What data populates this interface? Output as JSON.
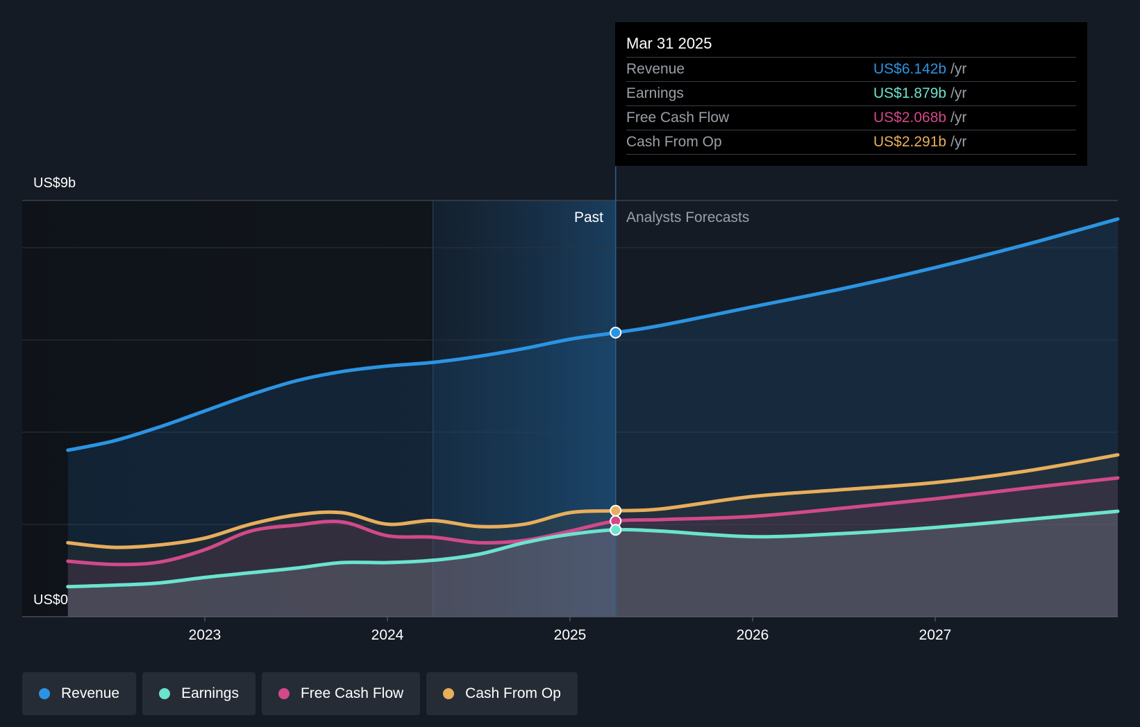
{
  "chart_data": {
    "type": "line",
    "y_axis": {
      "top_label": "US$9b",
      "bottom_label": "US$0",
      "ylim": [
        0,
        9
      ]
    },
    "x_axis": {
      "ticks": [
        "2023",
        "2024",
        "2025",
        "2026",
        "2027"
      ]
    },
    "x_range": [
      2022.0,
      2028.0
    ],
    "past_label": "Past",
    "forecast_label": "Analysts Forecasts",
    "split_x": 2025.25,
    "highlight_x_start": 2024.25,
    "series": [
      {
        "name": "Revenue",
        "color": "#2b94e2",
        "fill": true,
        "points": [
          [
            2022.25,
            3.6
          ],
          [
            2022.5,
            3.8
          ],
          [
            2022.75,
            4.1
          ],
          [
            2023.0,
            4.45
          ],
          [
            2023.25,
            4.8
          ],
          [
            2023.5,
            5.1
          ],
          [
            2023.75,
            5.3
          ],
          [
            2024.0,
            5.42
          ],
          [
            2024.25,
            5.5
          ],
          [
            2024.5,
            5.63
          ],
          [
            2024.75,
            5.8
          ],
          [
            2025.0,
            6.0
          ],
          [
            2025.25,
            6.142
          ],
          [
            2025.5,
            6.3
          ],
          [
            2026.0,
            6.7
          ],
          [
            2026.5,
            7.1
          ],
          [
            2027.0,
            7.55
          ],
          [
            2027.5,
            8.05
          ],
          [
            2028.0,
            8.6
          ]
        ]
      },
      {
        "name": "Cash From Op",
        "color": "#e8ae5c",
        "fill": false,
        "points": [
          [
            2022.25,
            1.6
          ],
          [
            2022.5,
            1.5
          ],
          [
            2022.75,
            1.55
          ],
          [
            2023.0,
            1.7
          ],
          [
            2023.25,
            2.0
          ],
          [
            2023.5,
            2.2
          ],
          [
            2023.75,
            2.25
          ],
          [
            2024.0,
            2.0
          ],
          [
            2024.25,
            2.08
          ],
          [
            2024.5,
            1.95
          ],
          [
            2024.75,
            2.0
          ],
          [
            2025.0,
            2.25
          ],
          [
            2025.25,
            2.291
          ],
          [
            2025.5,
            2.33
          ],
          [
            2026.0,
            2.6
          ],
          [
            2026.5,
            2.75
          ],
          [
            2027.0,
            2.9
          ],
          [
            2027.5,
            3.15
          ],
          [
            2028.0,
            3.5
          ]
        ]
      },
      {
        "name": "Free Cash Flow",
        "color": "#d2498a",
        "fill": false,
        "points": [
          [
            2022.25,
            1.2
          ],
          [
            2022.5,
            1.13
          ],
          [
            2022.75,
            1.18
          ],
          [
            2023.0,
            1.45
          ],
          [
            2023.25,
            1.85
          ],
          [
            2023.5,
            1.98
          ],
          [
            2023.75,
            2.05
          ],
          [
            2024.0,
            1.75
          ],
          [
            2024.25,
            1.72
          ],
          [
            2024.5,
            1.6
          ],
          [
            2024.75,
            1.65
          ],
          [
            2025.0,
            1.85
          ],
          [
            2025.25,
            2.068
          ],
          [
            2025.5,
            2.1
          ],
          [
            2026.0,
            2.17
          ],
          [
            2026.5,
            2.35
          ],
          [
            2027.0,
            2.55
          ],
          [
            2027.5,
            2.78
          ],
          [
            2028.0,
            3.0
          ]
        ]
      },
      {
        "name": "Earnings",
        "color": "#6be3cf",
        "fill": true,
        "points": [
          [
            2022.25,
            0.65
          ],
          [
            2022.5,
            0.68
          ],
          [
            2022.75,
            0.73
          ],
          [
            2023.0,
            0.85
          ],
          [
            2023.25,
            0.95
          ],
          [
            2023.5,
            1.05
          ],
          [
            2023.75,
            1.17
          ],
          [
            2024.0,
            1.17
          ],
          [
            2024.25,
            1.22
          ],
          [
            2024.5,
            1.35
          ],
          [
            2024.75,
            1.6
          ],
          [
            2025.0,
            1.78
          ],
          [
            2025.25,
            1.879
          ],
          [
            2025.5,
            1.85
          ],
          [
            2026.0,
            1.73
          ],
          [
            2026.5,
            1.8
          ],
          [
            2027.0,
            1.93
          ],
          [
            2027.5,
            2.1
          ],
          [
            2028.0,
            2.28
          ]
        ]
      }
    ]
  },
  "tooltip": {
    "date": "Mar 31 2025",
    "rows": [
      {
        "label": "Revenue",
        "value": "US$6.142b",
        "unit": "/yr",
        "color": "#2b94e2"
      },
      {
        "label": "Earnings",
        "value": "US$1.879b",
        "unit": "/yr",
        "color": "#6be3cf"
      },
      {
        "label": "Free Cash Flow",
        "value": "US$2.068b",
        "unit": "/yr",
        "color": "#d2498a"
      },
      {
        "label": "Cash From Op",
        "value": "US$2.291b",
        "unit": "/yr",
        "color": "#e8ae5c"
      }
    ]
  },
  "legend": [
    {
      "label": "Revenue",
      "color": "#2b94e2"
    },
    {
      "label": "Earnings",
      "color": "#6be3cf"
    },
    {
      "label": "Free Cash Flow",
      "color": "#d2498a"
    },
    {
      "label": "Cash From Op",
      "color": "#e8ae5c"
    }
  ]
}
